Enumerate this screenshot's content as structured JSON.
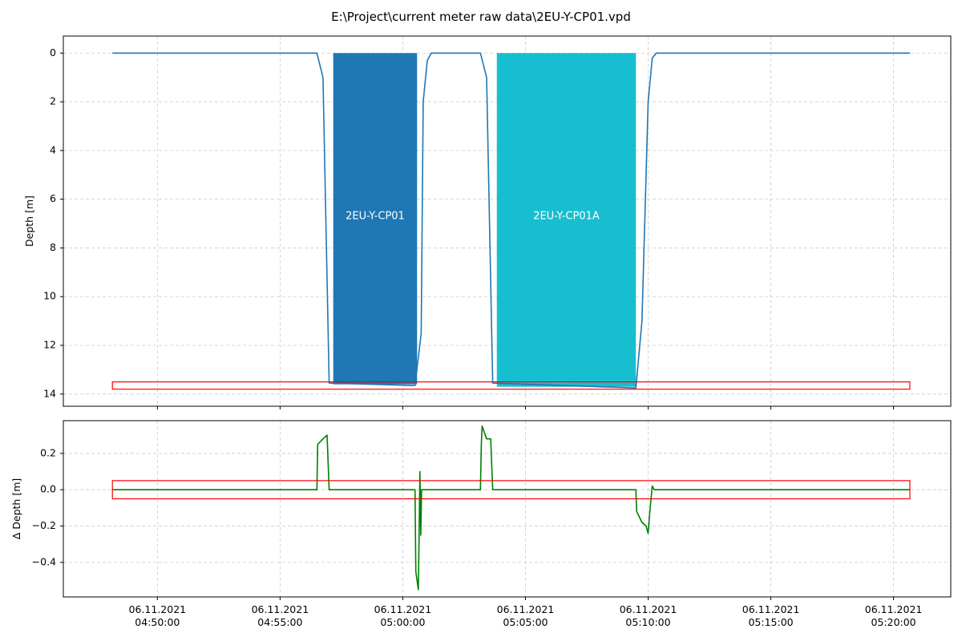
{
  "figure": {
    "title": "E:\\Project\\current meter raw data\\2EU-Y-CP01.vpd"
  },
  "chart_data": [
    {
      "type": "line",
      "ylabel": "Depth [m]",
      "y_inverted": true,
      "ylim": [
        14.5,
        -0.7
      ],
      "yticks": [
        0,
        2,
        4,
        6,
        8,
        10,
        12,
        14
      ],
      "xlim": [
        "2021-11-06T04:46:10",
        "2021-11-06T05:22:20"
      ],
      "xticks": [
        "2021-11-06T04:50:00",
        "2021-11-06T04:55:00",
        "2021-11-06T05:00:00",
        "2021-11-06T05:05:00",
        "2021-11-06T05:10:00",
        "2021-11-06T05:15:00",
        "2021-11-06T05:20:00"
      ],
      "grid": true,
      "line_color": "#1f77b4",
      "series": [
        {
          "points": [
            [
              "2021-11-06T04:48:10",
              0.0
            ],
            [
              "2021-11-06T04:56:30",
              0.0
            ],
            [
              "2021-11-06T04:56:45",
              1.0
            ],
            [
              "2021-11-06T04:57:00",
              13.55
            ],
            [
              "2021-11-06T05:00:30",
              13.65
            ],
            [
              "2021-11-06T05:00:45",
              11.5
            ],
            [
              "2021-11-06T05:00:50",
              2.0
            ],
            [
              "2021-11-06T05:01:00",
              0.3
            ],
            [
              "2021-11-06T05:01:10",
              0.0
            ],
            [
              "2021-11-06T05:03:10",
              0.0
            ],
            [
              "2021-11-06T05:03:25",
              1.0
            ],
            [
              "2021-11-06T05:03:40",
              13.55
            ],
            [
              "2021-11-06T05:09:30",
              13.75
            ],
            [
              "2021-11-06T05:09:45",
              11.0
            ],
            [
              "2021-11-06T05:10:00",
              2.0
            ],
            [
              "2021-11-06T05:10:10",
              0.2
            ],
            [
              "2021-11-06T05:10:20",
              0.0
            ],
            [
              "2021-11-06T05:20:40",
              0.0
            ]
          ]
        }
      ],
      "profiles": [
        {
          "name": "2EU-Y-CP01",
          "start": "2021-11-06T04:57:10",
          "end": "2021-11-06T05:00:35",
          "color": "#1f77b4",
          "bottom_depth": 13.6,
          "label_depth": 6.7
        },
        {
          "name": "2EU-Y-CP01A",
          "start": "2021-11-06T05:03:50",
          "end": "2021-11-06T05:09:30",
          "color": "#17becf",
          "bottom_depth": 13.7,
          "label_depth": 6.7
        }
      ],
      "box": {
        "start": "2021-11-06T04:48:10",
        "end": "2021-11-06T05:20:40",
        "y0": 13.5,
        "y1": 13.8,
        "color": "#ff0000"
      }
    },
    {
      "type": "line",
      "ylabel": "Δ Depth [m]",
      "ylim": [
        -0.59,
        0.38
      ],
      "yticks": [
        0.2,
        0.0,
        -0.2,
        -0.4
      ],
      "ytick_labels": [
        "0.2",
        "0.0",
        "−0.2",
        "−0.4"
      ],
      "xlim": [
        "2021-11-06T04:46:10",
        "2021-11-06T05:22:20"
      ],
      "xticks": [
        "2021-11-06T04:50:00",
        "2021-11-06T04:55:00",
        "2021-11-06T05:00:00",
        "2021-11-06T05:05:00",
        "2021-11-06T05:10:00",
        "2021-11-06T05:15:00",
        "2021-11-06T05:20:00"
      ],
      "xtick_labels": [
        [
          "06.11.2021",
          "04:50:00"
        ],
        [
          "06.11.2021",
          "04:55:00"
        ],
        [
          "06.11.2021",
          "05:00:00"
        ],
        [
          "06.11.2021",
          "05:05:00"
        ],
        [
          "06.11.2021",
          "05:10:00"
        ],
        [
          "06.11.2021",
          "05:15:00"
        ],
        [
          "06.11.2021",
          "05:20:00"
        ]
      ],
      "grid": true,
      "line_color": "#008000",
      "series": [
        {
          "points": [
            [
              "2021-11-06T04:48:10",
              0.0
            ],
            [
              "2021-11-06T04:56:30",
              0.0
            ],
            [
              "2021-11-06T04:56:32",
              0.25
            ],
            [
              "2021-11-06T04:56:45",
              0.28
            ],
            [
              "2021-11-06T04:56:55",
              0.3
            ],
            [
              "2021-11-06T04:57:00",
              0.0
            ],
            [
              "2021-11-06T05:00:30",
              0.0
            ],
            [
              "2021-11-06T05:00:32",
              -0.45
            ],
            [
              "2021-11-06T05:00:38",
              -0.55
            ],
            [
              "2021-11-06T05:00:40",
              -0.25
            ],
            [
              "2021-11-06T05:00:42",
              0.1
            ],
            [
              "2021-11-06T05:00:44",
              -0.25
            ],
            [
              "2021-11-06T05:00:46",
              0.0
            ],
            [
              "2021-11-06T05:03:10",
              0.0
            ],
            [
              "2021-11-06T05:03:12",
              0.25
            ],
            [
              "2021-11-06T05:03:14",
              0.35
            ],
            [
              "2021-11-06T05:03:25",
              0.28
            ],
            [
              "2021-11-06T05:03:35",
              0.28
            ],
            [
              "2021-11-06T05:03:40",
              0.0
            ],
            [
              "2021-11-06T05:09:30",
              0.0
            ],
            [
              "2021-11-06T05:09:32",
              -0.12
            ],
            [
              "2021-11-06T05:09:45",
              -0.18
            ],
            [
              "2021-11-06T05:09:55",
              -0.2
            ],
            [
              "2021-11-06T05:10:00",
              -0.24
            ],
            [
              "2021-11-06T05:10:05",
              -0.1
            ],
            [
              "2021-11-06T05:10:10",
              0.02
            ],
            [
              "2021-11-06T05:10:15",
              0.0
            ],
            [
              "2021-11-06T05:20:40",
              0.0
            ]
          ]
        }
      ],
      "box": {
        "start": "2021-11-06T04:48:10",
        "end": "2021-11-06T05:20:40",
        "y0": -0.05,
        "y1": 0.05,
        "color": "#ff0000"
      }
    }
  ]
}
